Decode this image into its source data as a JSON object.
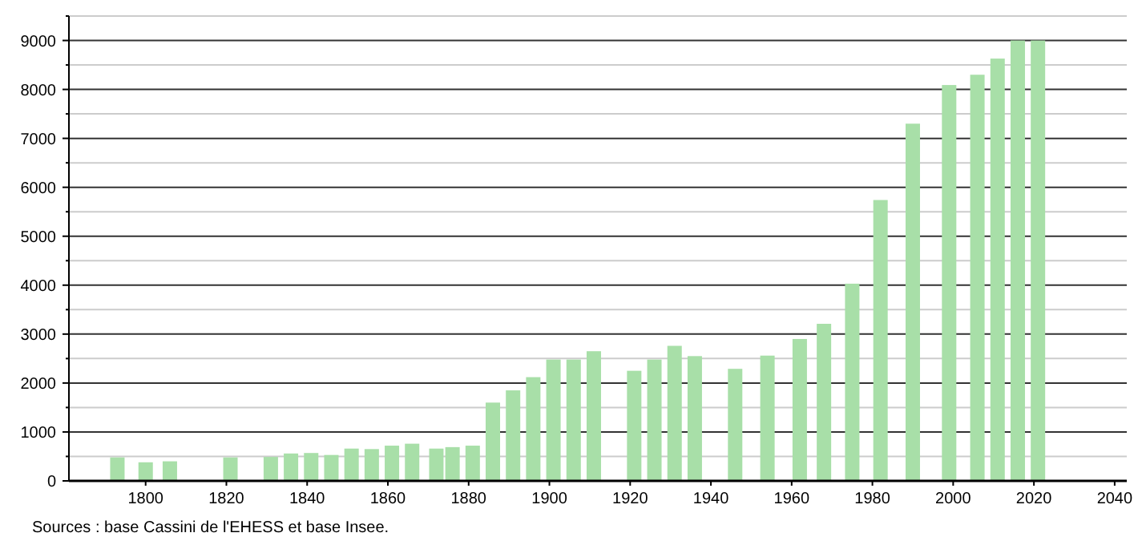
{
  "chart_data": {
    "type": "bar",
    "color": "#a8dfa8",
    "x": [
      1793,
      1800,
      1806,
      1821,
      1831,
      1836,
      1841,
      1846,
      1851,
      1856,
      1861,
      1866,
      1872,
      1876,
      1881,
      1886,
      1891,
      1896,
      1901,
      1906,
      1911,
      1921,
      1926,
      1931,
      1936,
      1946,
      1954,
      1962,
      1968,
      1975,
      1982,
      1990,
      1999,
      2006,
      2011,
      2016,
      2021
    ],
    "values": [
      480,
      380,
      400,
      480,
      490,
      560,
      570,
      530,
      660,
      650,
      720,
      760,
      660,
      690,
      720,
      1600,
      1850,
      2120,
      2480,
      2480,
      2650,
      2250,
      2480,
      2760,
      2550,
      2290,
      2560,
      2900,
      3210,
      4030,
      5740,
      7300,
      8090,
      8300,
      8630,
      9000,
      9000
    ],
    "xlim": [
      1781,
      2043
    ],
    "xticks": [
      1800,
      1820,
      1840,
      1860,
      1880,
      1900,
      1920,
      1940,
      1960,
      1980,
      2000,
      2020,
      2040
    ],
    "ylim": [
      0,
      9500
    ],
    "yticks": [
      0,
      {
        "value": 500,
        "label": null
      },
      1000,
      {
        "value": 1500,
        "label": null
      },
      2000,
      {
        "value": 2500,
        "label": null
      },
      3000,
      {
        "value": 3500,
        "label": null
      },
      4000,
      {
        "value": 4500,
        "label": null
      },
      5000,
      {
        "value": 5500,
        "label": null
      },
      6000,
      {
        "value": 6500,
        "label": null
      },
      7000,
      {
        "value": 7500,
        "label": null
      },
      8000,
      {
        "value": 8500,
        "label": null
      },
      9000,
      {
        "value": 9500,
        "label": null
      }
    ],
    "grid": true,
    "annotations": [
      "Sources : base Cassini de l'EHESS et base Insee."
    ]
  }
}
